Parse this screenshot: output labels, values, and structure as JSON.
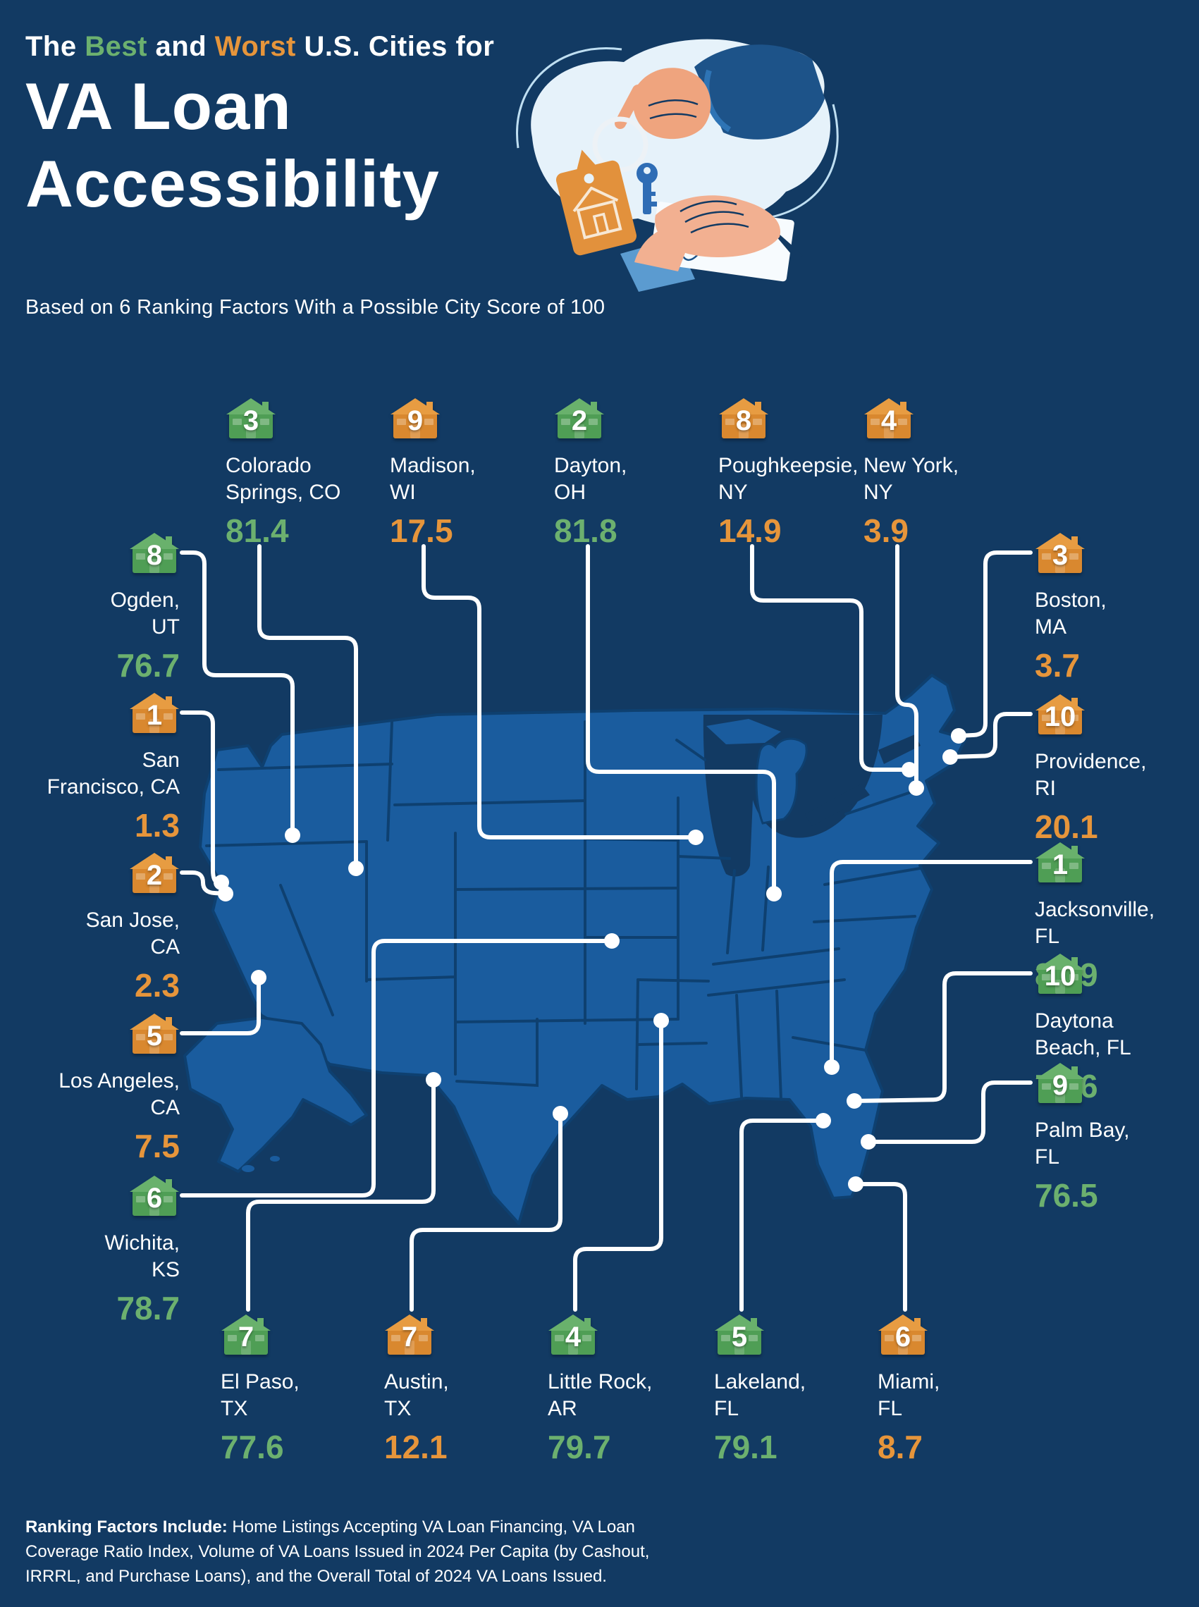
{
  "infographic": {
    "title": {
      "prefix": "The ",
      "best": "Best",
      "and": " and ",
      "worst": "Worst",
      "suffix": " U.S. Cities for",
      "main": "VA Loan Accessibility",
      "lines": [
        "VA Loan",
        "Accessibility"
      ]
    },
    "subtitle": "Based on 6 Ranking Factors With a Possible City Score of 100",
    "footer": {
      "lead": "Ranking Factors Include:",
      "text": " Home Listings Accepting VA Loan Financing, VA Loan Coverage Ratio Index, Volume of VA Loans Issued in 2024 Per Capita (by Cashout, IRRRL, and Purchase Loans), and the Overall Total of 2024 VA Loans Issued."
    }
  },
  "legend": {
    "best_meaning": "green = best cities rank and score",
    "worst_meaning": "orange = worst cities rank and score",
    "score_scale_max": 100
  },
  "colors": {
    "background": "#123A63",
    "map_fill": "#1A5C9E",
    "map_border": "#0E4070",
    "callout_line": "#FFFFFF",
    "best_green": "#6CB06F",
    "worst_orange": "#E6953B",
    "illustration_blob": "#E6F2FA",
    "keychain_tag": "#E2913C"
  },
  "cities": [
    {
      "id": "colorado-springs",
      "rank": "3",
      "name": "Colorado Springs, CO",
      "score": "81.4",
      "type": "best"
    },
    {
      "id": "madison",
      "rank": "9",
      "name": "Madison, WI",
      "score": "17.5",
      "type": "worst"
    },
    {
      "id": "dayton",
      "rank": "2",
      "name": "Dayton, OH",
      "score": "81.8",
      "type": "best"
    },
    {
      "id": "poughkeepsie",
      "rank": "8",
      "name": "Poughkeepsie, NY",
      "score": "14.9",
      "type": "worst"
    },
    {
      "id": "new-york",
      "rank": "4",
      "name": "New York, NY",
      "score": "3.9",
      "type": "worst"
    },
    {
      "id": "ogden",
      "rank": "8",
      "name": "Ogden, UT",
      "score": "76.7",
      "type": "best"
    },
    {
      "id": "san-francisco",
      "rank": "1",
      "name": "San Francisco, CA",
      "score": "1.3",
      "type": "worst"
    },
    {
      "id": "san-jose",
      "rank": "2",
      "name": "San Jose, CA",
      "score": "2.3",
      "type": "worst"
    },
    {
      "id": "los-angeles",
      "rank": "5",
      "name": "Los Angeles, CA",
      "score": "7.5",
      "type": "worst"
    },
    {
      "id": "wichita",
      "rank": "6",
      "name": "Wichita, KS",
      "score": "78.7",
      "type": "best"
    },
    {
      "id": "boston",
      "rank": "3",
      "name": "Boston, MA",
      "score": "3.7",
      "type": "worst"
    },
    {
      "id": "providence",
      "rank": "10",
      "name": "Providence, RI",
      "score": "20.1",
      "type": "worst"
    },
    {
      "id": "jacksonville",
      "rank": "1",
      "name": "Jacksonville, FL",
      "score": "85.9",
      "type": "best"
    },
    {
      "id": "daytona-beach",
      "rank": "10",
      "name": "Daytona Beach, FL",
      "score": "73.6",
      "type": "best"
    },
    {
      "id": "palm-bay",
      "rank": "9",
      "name": "Palm Bay, FL",
      "score": "76.5",
      "type": "best"
    },
    {
      "id": "el-paso",
      "rank": "7",
      "name": "El Paso, TX",
      "score": "77.6",
      "type": "best"
    },
    {
      "id": "austin",
      "rank": "7",
      "name": "Austin, TX",
      "score": "12.1",
      "type": "worst"
    },
    {
      "id": "little-rock",
      "rank": "4",
      "name": "Little Rock, AR",
      "score": "79.7",
      "type": "best"
    },
    {
      "id": "lakeland",
      "rank": "5",
      "name": "Lakeland, FL",
      "score": "79.1",
      "type": "best"
    },
    {
      "id": "miami",
      "rank": "6",
      "name": "Miami, FL",
      "score": "8.7",
      "type": "worst"
    }
  ]
}
